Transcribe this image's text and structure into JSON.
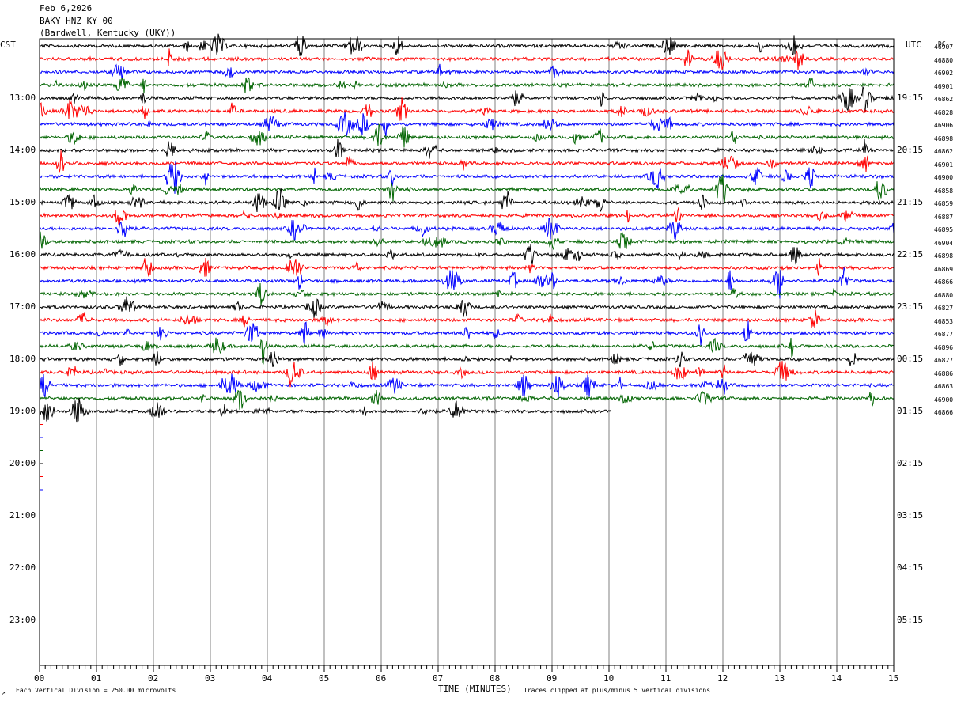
{
  "header": {
    "date": "Feb 6,2026",
    "station": "BAKY HNZ KY 00",
    "location": "(Bardwell, Kentucky (UKY))"
  },
  "left_timezone": "CST",
  "right_timezone": "UTC",
  "dc_label": "DC",
  "footer": {
    "scale_note": "Each Vertical Division =  250.00 microvolts",
    "clip_note": "Traces clipped at plus/minus 5 vertical divisions",
    "corner_mark": "↗"
  },
  "colors": {
    "cycle": [
      "#000000",
      "#ff0000",
      "#0000ff",
      "#006400"
    ],
    "grid": "#808080"
  },
  "chart_data": {
    "type": "line",
    "xlabel": "TIME (MINUTES)",
    "xlim": [
      0,
      15
    ],
    "x_ticks": [
      "00",
      "01",
      "02",
      "03",
      "04",
      "05",
      "06",
      "07",
      "08",
      "09",
      "10",
      "11",
      "12",
      "13",
      "14",
      "15"
    ],
    "rows_per_hour": 4,
    "minutes_per_row": 15,
    "left_hour_labels": [
      "13:00",
      "14:00",
      "15:00",
      "16:00",
      "17:00",
      "18:00",
      "19:00",
      "20:00",
      "21:00",
      "22:00",
      "23:00"
    ],
    "right_hour_labels": [
      "19:15",
      "20:15",
      "21:15",
      "22:15",
      "23:15",
      "00:15",
      "01:15",
      "02:15",
      "03:15",
      "04:15",
      "05:15"
    ],
    "dc_values": [
      "46907",
      "46880",
      "46902",
      "46901",
      "46862",
      "46828",
      "46906",
      "46898",
      "46862",
      "46901",
      "46900",
      "46858",
      "46859",
      "46887",
      "46895",
      "46904",
      "46898",
      "46869",
      "46866",
      "46880",
      "46827",
      "46853",
      "46877",
      "46896",
      "46827",
      "46886",
      "46863",
      "46900",
      "46866"
    ],
    "traces_completed_rows": 28,
    "last_row_end_minute": 10.05
  }
}
